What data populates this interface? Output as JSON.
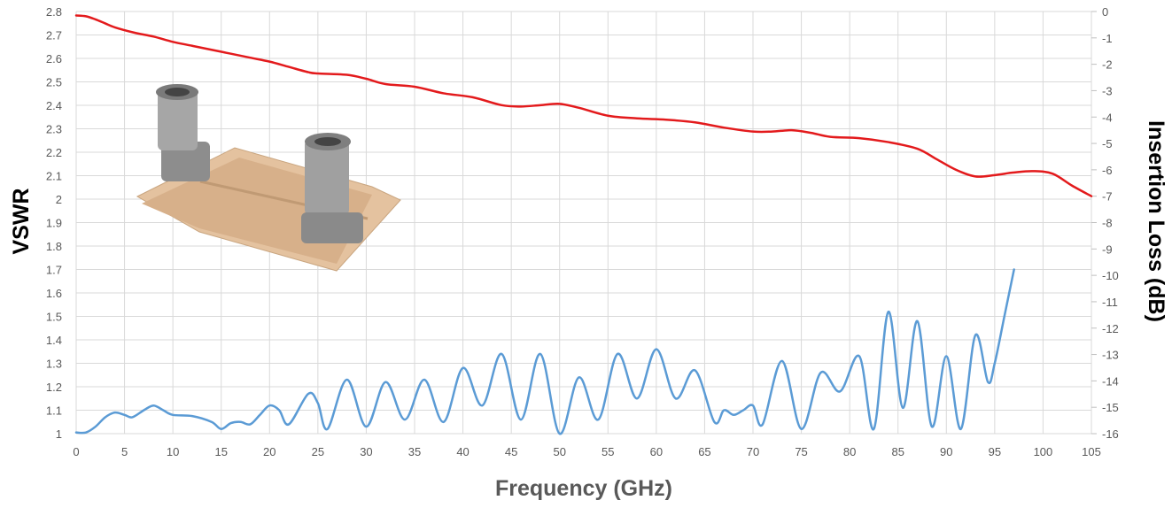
{
  "chart_data": {
    "type": "line",
    "xlabel": "Frequency (GHz)",
    "ylabel_left": "VSWR",
    "ylabel_right": "Insertion Loss (dB)",
    "xlim": [
      0,
      105
    ],
    "ylim_left": [
      1,
      2.8
    ],
    "ylim_right": [
      -16,
      0
    ],
    "grid": true,
    "x_ticks": [
      "0",
      "5",
      "10",
      "15",
      "20",
      "25",
      "30",
      "35",
      "40",
      "45",
      "50",
      "55",
      "60",
      "65",
      "70",
      "75",
      "80",
      "85",
      "90",
      "95",
      "100",
      "105"
    ],
    "y_left_ticks": [
      "1",
      "1.1",
      "1.2",
      "1.3",
      "1.4",
      "1.5",
      "1.6",
      "1.7",
      "1.8",
      "1.9",
      "2",
      "2.1",
      "2.2",
      "2.3",
      "2.4",
      "2.5",
      "2.6",
      "2.7",
      "2.8"
    ],
    "y_right_ticks": [
      "0",
      "-1",
      "-2",
      "-3",
      "-4",
      "-5",
      "-6",
      "-7",
      "-8",
      "-9",
      "-10",
      "-11",
      "-12",
      "-13",
      "-14",
      "-15",
      "-16"
    ],
    "series": [
      {
        "axis": "right",
        "color": "#e31a1c",
        "points": [
          [
            0,
            -0.15
          ],
          [
            1,
            -0.18
          ],
          [
            2,
            -0.3
          ],
          [
            3,
            -0.45
          ],
          [
            4,
            -0.6
          ],
          [
            6,
            -0.8
          ],
          [
            8,
            -0.95
          ],
          [
            10,
            -1.15
          ],
          [
            12,
            -1.3
          ],
          [
            14,
            -1.45
          ],
          [
            16,
            -1.6
          ],
          [
            18,
            -1.75
          ],
          [
            20,
            -1.9
          ],
          [
            22,
            -2.1
          ],
          [
            24,
            -2.3
          ],
          [
            25,
            -2.35
          ],
          [
            28,
            -2.4
          ],
          [
            30,
            -2.55
          ],
          [
            32,
            -2.75
          ],
          [
            35,
            -2.85
          ],
          [
            38,
            -3.1
          ],
          [
            41,
            -3.25
          ],
          [
            44,
            -3.55
          ],
          [
            46,
            -3.6
          ],
          [
            48,
            -3.55
          ],
          [
            50,
            -3.5
          ],
          [
            52,
            -3.65
          ],
          [
            55,
            -3.95
          ],
          [
            58,
            -4.05
          ],
          [
            61,
            -4.1
          ],
          [
            64,
            -4.2
          ],
          [
            67,
            -4.4
          ],
          [
            70,
            -4.55
          ],
          [
            72,
            -4.55
          ],
          [
            74,
            -4.5
          ],
          [
            76,
            -4.6
          ],
          [
            78,
            -4.75
          ],
          [
            81,
            -4.8
          ],
          [
            84,
            -4.95
          ],
          [
            87,
            -5.2
          ],
          [
            89,
            -5.6
          ],
          [
            91,
            -6.0
          ],
          [
            93,
            -6.25
          ],
          [
            95,
            -6.2
          ],
          [
            97,
            -6.1
          ],
          [
            99,
            -6.05
          ],
          [
            101,
            -6.15
          ],
          [
            103,
            -6.6
          ],
          [
            105,
            -7.0
          ]
        ]
      },
      {
        "axis": "left",
        "color": "#5b9bd5",
        "points": [
          [
            0,
            1.005
          ],
          [
            1,
            1.005
          ],
          [
            2,
            1.03
          ],
          [
            3,
            1.07
          ],
          [
            4,
            1.09
          ],
          [
            5,
            1.08
          ],
          [
            5.8,
            1.07
          ],
          [
            7,
            1.1
          ],
          [
            8,
            1.12
          ],
          [
            9,
            1.1
          ],
          [
            10,
            1.08
          ],
          [
            12,
            1.075
          ],
          [
            14,
            1.05
          ],
          [
            15,
            1.02
          ],
          [
            16,
            1.045
          ],
          [
            17,
            1.05
          ],
          [
            18,
            1.04
          ],
          [
            19,
            1.08
          ],
          [
            20,
            1.12
          ],
          [
            21,
            1.1
          ],
          [
            22,
            1.04
          ],
          [
            24,
            1.17
          ],
          [
            25,
            1.13
          ],
          [
            26,
            1.02
          ],
          [
            28,
            1.23
          ],
          [
            30,
            1.03
          ],
          [
            32,
            1.22
          ],
          [
            34,
            1.06
          ],
          [
            36,
            1.23
          ],
          [
            38,
            1.05
          ],
          [
            40,
            1.28
          ],
          [
            42,
            1.12
          ],
          [
            44,
            1.34
          ],
          [
            46,
            1.06
          ],
          [
            48,
            1.34
          ],
          [
            50,
            1.0
          ],
          [
            52,
            1.24
          ],
          [
            54,
            1.06
          ],
          [
            56,
            1.34
          ],
          [
            58,
            1.15
          ],
          [
            60,
            1.36
          ],
          [
            62,
            1.15
          ],
          [
            64,
            1.27
          ],
          [
            66,
            1.05
          ],
          [
            67,
            1.1
          ],
          [
            68,
            1.08
          ],
          [
            69,
            1.1
          ],
          [
            70,
            1.12
          ],
          [
            71,
            1.04
          ],
          [
            73,
            1.31
          ],
          [
            75,
            1.02
          ],
          [
            77,
            1.26
          ],
          [
            79,
            1.18
          ],
          [
            81,
            1.33
          ],
          [
            82.5,
            1.02
          ],
          [
            84,
            1.52
          ],
          [
            85.5,
            1.11
          ],
          [
            87,
            1.48
          ],
          [
            88.5,
            1.03
          ],
          [
            90,
            1.33
          ],
          [
            91.5,
            1.02
          ],
          [
            93,
            1.42
          ],
          [
            94.3,
            1.22
          ],
          [
            95,
            1.3
          ],
          [
            96,
            1.5
          ],
          [
            97,
            1.7
          ]
        ]
      }
    ]
  }
}
